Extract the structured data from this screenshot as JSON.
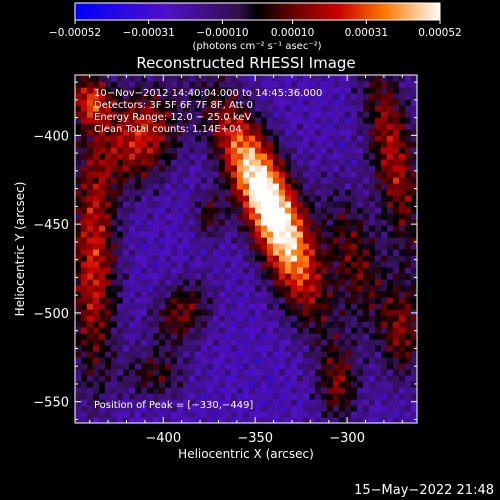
{
  "chart_data": {
    "type": "heatmap",
    "title": "Reconstructed RHESSI Image",
    "xlabel": "Heliocentric X (arcsec)",
    "ylabel": "Heliocentric Y (arcsec)",
    "xlim": [
      -448,
      -262
    ],
    "ylim": [
      -562,
      -366
    ],
    "x_ticks": [
      -400,
      -350,
      -300
    ],
    "x_tick_labels": [
      "−400",
      "−350",
      "−300"
    ],
    "y_ticks": [
      -400,
      -450,
      -500,
      -550
    ],
    "y_tick_labels": [
      "−400",
      "−450",
      "−500",
      "−550"
    ],
    "colorbar": {
      "min": -0.00052,
      "max": 0.00052,
      "ticks": [
        -0.00052,
        -0.00031,
        -0.0001,
        0.0001,
        0.00031,
        0.00052
      ],
      "tick_labels": [
        "−0.00052",
        "−0.00031",
        "−0.00010",
        "0.00010",
        "0.00031",
        "0.00052"
      ],
      "unit_label": "(photons cm⁻² s⁻¹ asec⁻²)"
    },
    "annotations": [
      "10−Nov−2012 14:40:04.000 to 14:45:36.000",
      "Detectors: 3F 5F 6F 7F 8F, Att 0",
      "Energy Range: 12.0 − 25.0 keV",
      "Clean    Total counts: 1.14E+04"
    ],
    "peak_label": "Position of Peak = [−330,−449]",
    "peak": {
      "x": -330,
      "y": -449,
      "value": 0.00052
    },
    "sources": [
      {
        "x": -335,
        "y": -455,
        "sx": 11,
        "sy": 38,
        "rot": -20,
        "amp": 0.00055
      },
      {
        "x": -352,
        "y": -420,
        "sx": 10,
        "sy": 36,
        "rot": -25,
        "amp": 0.00045
      },
      {
        "x": -275,
        "y": -410,
        "sx": 9,
        "sy": 42,
        "rot": -10,
        "amp": 0.0004
      },
      {
        "x": -295,
        "y": -470,
        "sx": 10,
        "sy": 30,
        "rot": -15,
        "amp": 0.0003
      },
      {
        "x": -412,
        "y": -400,
        "sx": 14,
        "sy": 20,
        "rot": 20,
        "amp": 0.00045
      },
      {
        "x": -438,
        "y": -470,
        "sx": 9,
        "sy": 50,
        "rot": 0,
        "amp": 0.00045
      },
      {
        "x": -440,
        "y": -380,
        "sx": 8,
        "sy": 10,
        "rot": 0,
        "amp": 0.0004
      },
      {
        "x": -390,
        "y": -500,
        "sx": 10,
        "sy": 14,
        "rot": 30,
        "amp": 0.00032
      },
      {
        "x": -305,
        "y": -540,
        "sx": 8,
        "sy": 16,
        "rot": 0,
        "amp": 0.0003
      },
      {
        "x": -375,
        "y": -445,
        "sx": 6,
        "sy": 10,
        "rot": 0,
        "amp": 0.00025
      },
      {
        "x": -270,
        "y": -510,
        "sx": 8,
        "sy": 20,
        "rot": 0,
        "amp": 0.0003
      },
      {
        "x": -405,
        "y": -535,
        "sx": 12,
        "sy": 10,
        "rot": 0,
        "amp": 0.00025
      }
    ]
  },
  "timestamp": "15−May−2022 21:48"
}
